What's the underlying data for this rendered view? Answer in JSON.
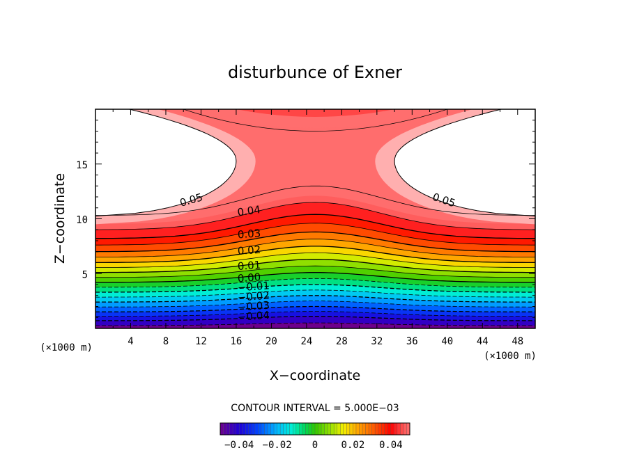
{
  "chart_data": {
    "type": "contour",
    "title": "disturbunce of Exner",
    "xlabel": "X−coordinate",
    "ylabel": "Z−coordinate",
    "x_unit": "(×1000 m)",
    "y_unit": "(×1000 m)",
    "xlim": [
      0,
      50
    ],
    "ylim": [
      0,
      20
    ],
    "x_ticks": [
      "4",
      "8",
      "12",
      "16",
      "20",
      "24",
      "28",
      "32",
      "36",
      "40",
      "44",
      "48"
    ],
    "y_ticks": [
      "5",
      "10",
      "15"
    ],
    "contour_interval_text": "CONTOUR INTERVAL = 5.000E−03",
    "contour_interval": 0.005,
    "contour_labels": [
      {
        "text": "0.05",
        "x": 11,
        "z": 11.4
      },
      {
        "text": "0.05",
        "x": 39.5,
        "z": 11.4
      },
      {
        "text": "0.04",
        "x": 17.5,
        "z": 10.4
      },
      {
        "text": "0.03",
        "x": 17.5,
        "z": 8.3
      },
      {
        "text": "0.02",
        "x": 17.5,
        "z": 6.8
      },
      {
        "text": "0.01",
        "x": 17.5,
        "z": 5.4
      },
      {
        "text": "0.00",
        "x": 17.5,
        "z": 4.3
      },
      {
        "text": "−0.01",
        "x": 18,
        "z": 3.5
      },
      {
        "text": "−0.02",
        "x": 18,
        "z": 2.6
      },
      {
        "text": "−0.03",
        "x": 18,
        "z": 1.7
      },
      {
        "text": "−0.04",
        "x": 18,
        "z": 0.8
      }
    ],
    "colorbar": {
      "range": [
        -0.05,
        0.05
      ],
      "ticks": [
        "−0.04",
        "−0.02",
        "0",
        "0.02",
        "0.04"
      ]
    },
    "grid": false,
    "legend": "none"
  }
}
